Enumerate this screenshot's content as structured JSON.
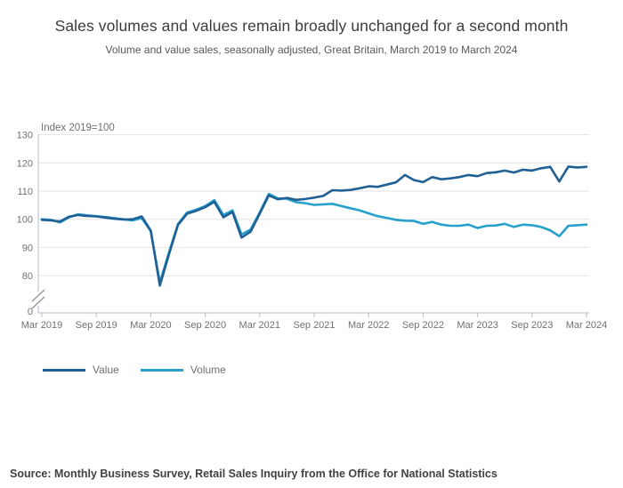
{
  "header": {
    "title": "Sales volumes and values remain broadly unchanged for a second month",
    "subtitle": "Volume and value sales, seasonally adjusted, Great Britain, March 2019 to March 2024"
  },
  "chart_data": {
    "type": "line",
    "title": "Sales volumes and values remain broadly unchanged for a second month",
    "subtitle": "Volume and value sales, seasonally adjusted, Great Britain, March 2019 to March 2024",
    "unit_label": "Index 2019=100",
    "grid": "horizontal",
    "legend_position": "bottom-left",
    "y_axis_break": true,
    "y_zero_label": "0",
    "ylim_shown": [
      80,
      130
    ],
    "y_tick_values": [
      130,
      120,
      110,
      100,
      90,
      80
    ],
    "x_tick_labels": [
      "Mar 2019",
      "Sep 2019",
      "Mar 2020",
      "Sep 2020",
      "Mar 2021",
      "Sep 2021",
      "Mar 2022",
      "Sep 2022",
      "Mar 2023",
      "Sep 2023",
      "Mar 2024"
    ],
    "x": [
      "Mar 2019",
      "Apr 2019",
      "May 2019",
      "Jun 2019",
      "Jul 2019",
      "Aug 2019",
      "Sep 2019",
      "Oct 2019",
      "Nov 2019",
      "Dec 2019",
      "Jan 2020",
      "Feb 2020",
      "Mar 2020",
      "Apr 2020",
      "May 2020",
      "Jun 2020",
      "Jul 2020",
      "Aug 2020",
      "Sep 2020",
      "Oct 2020",
      "Nov 2020",
      "Dec 2020",
      "Jan 2021",
      "Feb 2021",
      "Mar 2021",
      "Apr 2021",
      "May 2021",
      "Jun 2021",
      "Jul 2021",
      "Aug 2021",
      "Sep 2021",
      "Oct 2021",
      "Nov 2021",
      "Dec 2021",
      "Jan 2022",
      "Feb 2022",
      "Mar 2022",
      "Apr 2022",
      "May 2022",
      "Jun 2022",
      "Jul 2022",
      "Aug 2022",
      "Sep 2022",
      "Oct 2022",
      "Nov 2022",
      "Dec 2022",
      "Jan 2023",
      "Feb 2023",
      "Mar 2023",
      "Apr 2023",
      "May 2023",
      "Jun 2023",
      "Jul 2023",
      "Aug 2023",
      "Sep 2023",
      "Oct 2023",
      "Nov 2023",
      "Dec 2023",
      "Jan 2024",
      "Feb 2024",
      "Mar 2024"
    ],
    "series": [
      {
        "name": "Value",
        "color": "#206095",
        "values": [
          99.8,
          99.6,
          99.2,
          100.9,
          101.5,
          101.2,
          101.0,
          100.6,
          100.2,
          99.9,
          100.0,
          101.0,
          96.0,
          76.5,
          87.5,
          98.0,
          102.0,
          103.0,
          104.3,
          106.2,
          100.7,
          102.6,
          93.5,
          95.6,
          102.0,
          108.5,
          107.1,
          107.6,
          106.9,
          107.2,
          107.7,
          108.3,
          110.3,
          110.2,
          110.4,
          111.0,
          111.7,
          111.5,
          112.3,
          113.1,
          115.7,
          113.9,
          113.2,
          115.0,
          114.2,
          114.5,
          115.0,
          115.7,
          115.3,
          116.4,
          116.7,
          117.3,
          116.6,
          117.6,
          117.3,
          118.1,
          118.6,
          113.4,
          118.7,
          118.4,
          118.6
        ]
      },
      {
        "name": "Volume",
        "color": "#27a0cc",
        "values": [
          100.0,
          99.8,
          98.9,
          100.7,
          101.8,
          101.4,
          101.1,
          100.8,
          100.4,
          100.0,
          99.6,
          100.4,
          95.8,
          77.5,
          88.2,
          98.3,
          102.4,
          103.4,
          104.7,
          106.8,
          101.5,
          103.2,
          94.6,
          96.4,
          102.4,
          109.0,
          107.4,
          107.3,
          106.1,
          105.7,
          105.1,
          105.3,
          105.5,
          104.7,
          103.9,
          103.2,
          102.1,
          101.1,
          100.5,
          99.8,
          99.5,
          99.4,
          98.4,
          99.1,
          98.1,
          97.7,
          97.7,
          98.1,
          96.9,
          97.7,
          97.8,
          98.4,
          97.3,
          98.1,
          97.9,
          97.3,
          96.1,
          94.0,
          97.7,
          97.9,
          98.1
        ]
      }
    ]
  },
  "legend": {
    "items": [
      {
        "label": "Value",
        "color": "#206095"
      },
      {
        "label": "Volume",
        "color": "#27a0cc"
      }
    ]
  },
  "source": {
    "text": "Source: Monthly Business Survey, Retail Sales Inquiry from the Office for National Statistics"
  },
  "colors": {
    "value_line": "#206095",
    "volume_line": "#27a0cc",
    "gridline": "#e2e2e2",
    "axis": "#b3bfc8",
    "axis_text": "#707071",
    "title_text": "#3c3c3c",
    "subtitle_text": "#595959",
    "source_text": "#414042"
  }
}
